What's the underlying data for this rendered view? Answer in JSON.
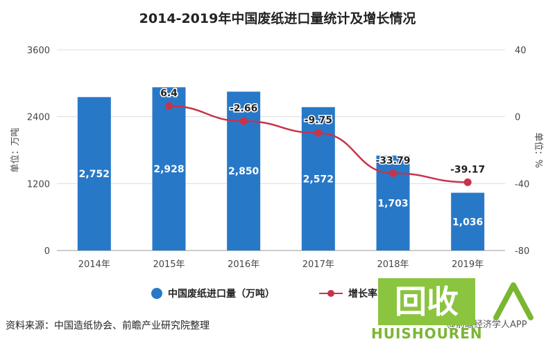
{
  "title": "2014-2019年中国废纸进口量统计及增长情况",
  "chart_data": {
    "type": "bar",
    "categories": [
      "2014年",
      "2015年",
      "2016年",
      "2017年",
      "2018年",
      "2019年"
    ],
    "series": [
      {
        "name": "中国废纸进口量（万吨）",
        "type": "bar",
        "axis": "left",
        "values": [
          2752,
          2928,
          2850,
          2572,
          1703,
          1036
        ],
        "labels": [
          "2,752",
          "2,928",
          "2,850",
          "2,572",
          "1,703",
          "1,036"
        ]
      },
      {
        "name": "增长率",
        "type": "line",
        "axis": "right",
        "values": [
          null,
          6.4,
          -2.66,
          -9.75,
          -33.79,
          -39.17
        ],
        "labels": [
          "",
          "6.4",
          "-2.66",
          "-9.75",
          "-33.79",
          "-39.17"
        ]
      }
    ],
    "ylabel": "单位：万吨",
    "y2label": "单位：%",
    "ylim": [
      0,
      3600
    ],
    "y2lim": [
      -80,
      40
    ],
    "yticks": [
      "0",
      "1200",
      "2400",
      "3600"
    ],
    "y2ticks": [
      "-80",
      "-40",
      "0",
      "40"
    ],
    "grid": true,
    "legend": "bottom",
    "colors": {
      "bar": "#2878c8",
      "line": "#c8334a"
    }
  },
  "source": "资料来源：中国造纸协会、前瞻产业研究院整理",
  "watermark": "@前瞻经济学人APP",
  "logo": {
    "main": "回收",
    "sub": "HUISHOUREN"
  }
}
